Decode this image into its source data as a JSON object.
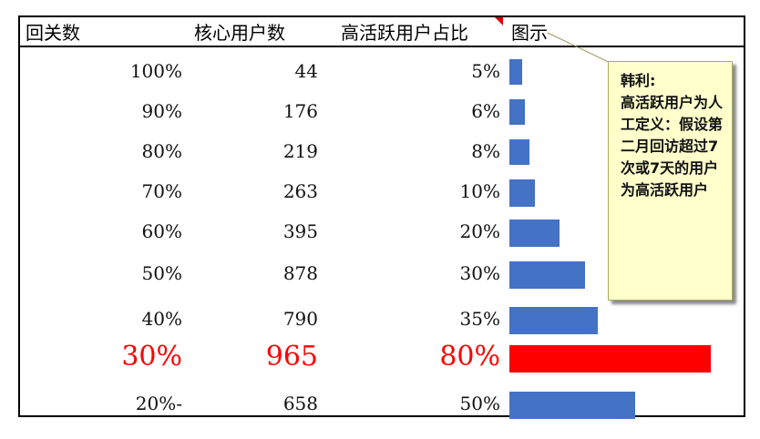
{
  "header": {
    "col1": "回关数",
    "col2": "核心用户数",
    "col3": "高活跃用户占比",
    "col4": "图示"
  },
  "highlight_color": "#ff0000",
  "bar_color": "#4472c4",
  "highlight_row_index": 7,
  "chart_data": {
    "type": "bar",
    "orientation": "horizontal",
    "categories": [
      "100%",
      "90%",
      "80%",
      "70%",
      "60%",
      "50%",
      "40%",
      "30%",
      "20%-"
    ],
    "core_users": [
      "44",
      "176",
      "219",
      "263",
      "395",
      "878",
      "790",
      "965",
      "658"
    ],
    "ratio_labels": [
      "5%",
      "6%",
      "8%",
      "10%",
      "20%",
      "30%",
      "35%",
      "80%",
      "50%"
    ],
    "values": [
      5,
      6,
      8,
      10,
      20,
      30,
      35,
      80,
      50
    ],
    "xlim": [
      0,
      100
    ]
  },
  "comment": {
    "author": "韩利:",
    "text": "高活跃用户为人工定义：假设第二月回访超过7次或7天的用户为高活跃用户"
  }
}
